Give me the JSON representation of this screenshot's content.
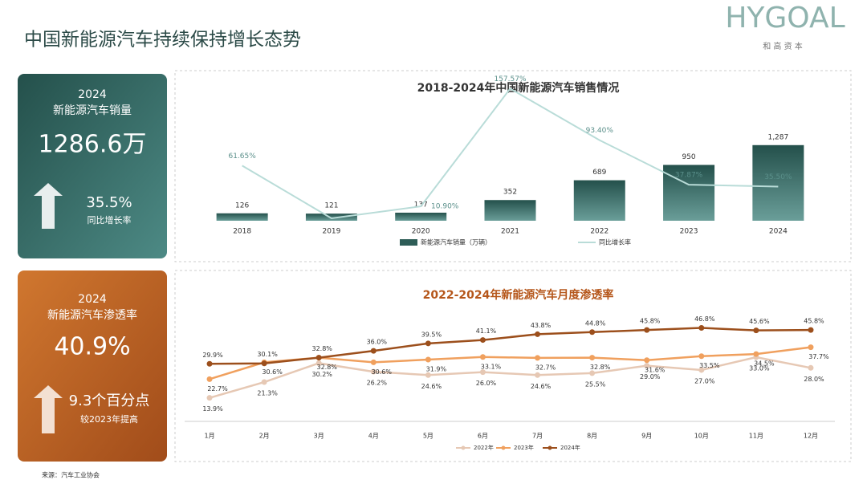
{
  "header": {
    "title": "中国新能源汽车持续保持增长态势",
    "logo": "HYGOAL",
    "logo_sub": "和 高 资 本"
  },
  "cards": [
    {
      "year": "2024",
      "label": "新能源汽车销量",
      "value": "1286.6万",
      "delta": "35.5%",
      "delta_label": "同比增长率"
    },
    {
      "year": "2024",
      "label": "新能源汽车渗透率",
      "value": "40.9%",
      "delta": "9.3个百分点",
      "delta_label": "较2023年提高"
    }
  ],
  "source": "来源：汽车工业协会",
  "chart_data": [
    {
      "type": "bar_line",
      "title": "2018-2024年中国新能源汽车销售情况",
      "categories": [
        "2018",
        "2019",
        "2020",
        "2021",
        "2022",
        "2023",
        "2024"
      ],
      "ylim": [
        0,
        2500
      ],
      "y2lim": [
        -7,
        176
      ],
      "series": [
        {
          "name": "新能源汽车销量（万辆）",
          "color": "#2e5d57",
          "values": [
            126,
            121,
            137,
            352,
            689,
            950,
            1287
          ],
          "value_labels": [
            "126",
            "121",
            "137",
            "352",
            "689",
            "950",
            "1,287"
          ]
        },
        {
          "name": "同比增长率",
          "color": "#b9dcd8",
          "axis": "y2",
          "values": [
            61.65,
            -4,
            10.9,
            157.57,
            93.4,
            37.87,
            35.5
          ],
          "value_labels": [
            "61.65%",
            null,
            "10.90%",
            "157.57%",
            "93.40%",
            "37.87%",
            "35.50%"
          ]
        }
      ]
    },
    {
      "type": "line",
      "title": "2022-2024年新能源汽车月度渗透率",
      "categories": [
        "1月",
        "2月",
        "3月",
        "4月",
        "5月",
        "6月",
        "7月",
        "8月",
        "9月",
        "10月",
        "11月",
        "12月"
      ],
      "ylim": [
        10,
        50
      ],
      "series": [
        {
          "name": "2022年",
          "color": "#e6c8b4",
          "values": [
            13.9,
            21.3,
            30.2,
            26.2,
            24.6,
            26.0,
            24.6,
            25.5,
            29.0,
            27.0,
            33.0,
            28.0
          ],
          "value_labels": [
            "13.9%",
            "21.3%",
            "30.2%",
            "26.2%",
            "24.6%",
            "26.0%",
            "24.6%",
            "25.5%",
            "29.0%",
            "27.0%",
            "33.0%",
            "28.0%"
          ]
        },
        {
          "name": "2023年",
          "color": "#f0a05e",
          "values": [
            22.7,
            30.6,
            32.8,
            30.6,
            31.9,
            33.1,
            32.7,
            32.8,
            31.6,
            33.5,
            34.5,
            37.7
          ],
          "value_labels": [
            "22.7%",
            "30.6%",
            "32.8%",
            "30.6%",
            "31.9%",
            "33.1%",
            "32.7%",
            "32.8%",
            "31.6%",
            "33.5%",
            "34.5%",
            "37.7%"
          ]
        },
        {
          "name": "2024年",
          "color": "#9c4f1c",
          "values": [
            29.9,
            30.1,
            32.8,
            36.0,
            39.5,
            41.1,
            43.8,
            44.8,
            45.8,
            46.8,
            45.6,
            45.8
          ],
          "value_labels": [
            "29.9%",
            "30.1%",
            "32.8%",
            "36.0%",
            "39.5%",
            "41.1%",
            "43.8%",
            "44.8%",
            "45.8%",
            "46.8%",
            "45.6%",
            "45.8%"
          ]
        }
      ]
    }
  ]
}
